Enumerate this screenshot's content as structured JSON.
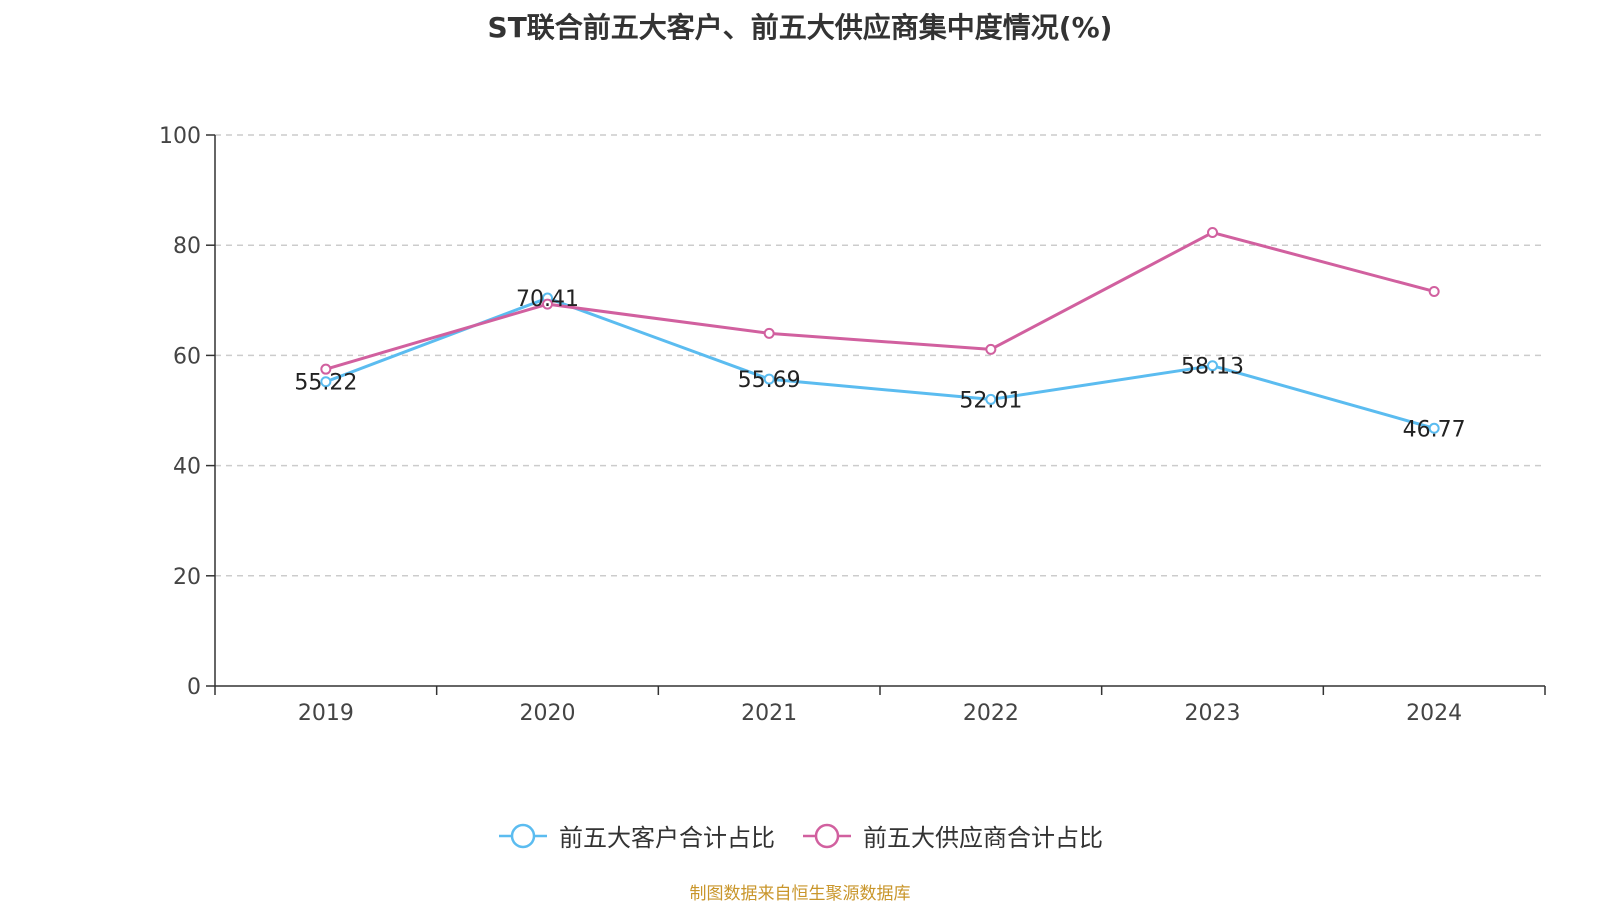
{
  "chart_data": {
    "type": "line",
    "title": "ST联合前五大客户、前五大供应商集中度情况(%)",
    "categories": [
      "2019",
      "2020",
      "2021",
      "2022",
      "2023",
      "2024"
    ],
    "ylim": [
      0,
      100
    ],
    "yticks": [
      0,
      20,
      40,
      60,
      80,
      100
    ],
    "grid": true,
    "legend_position": "bottom",
    "series": [
      {
        "name": "前五大客户合计占比",
        "color": "#5bbcf0",
        "values": [
          55.22,
          70.41,
          55.69,
          52.01,
          58.13,
          46.77
        ],
        "labels": [
          "55.22",
          "70.41",
          "55.69",
          "52.01",
          "58.13",
          "46.77"
        ]
      },
      {
        "name": "前五大供应商合计占比",
        "color": "#d1609f",
        "values": [
          57.5,
          69.3,
          64.0,
          61.1,
          82.3,
          71.6
        ]
      }
    ]
  },
  "source": "制图数据来自恒生聚源数据库"
}
